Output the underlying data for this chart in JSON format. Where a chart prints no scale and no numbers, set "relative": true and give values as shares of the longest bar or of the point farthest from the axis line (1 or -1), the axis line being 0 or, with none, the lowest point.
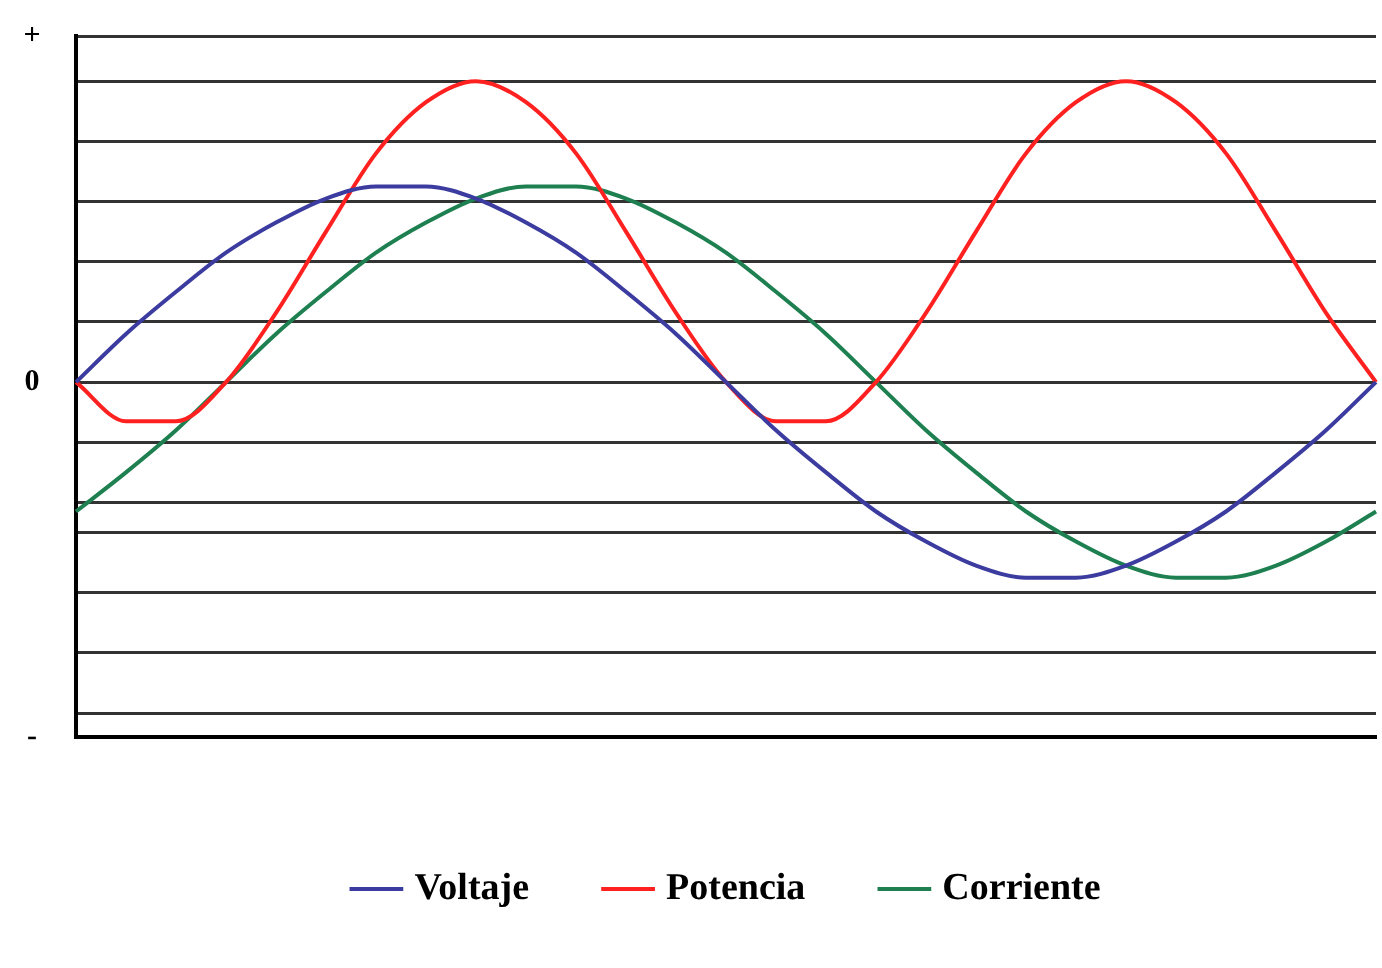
{
  "chart_data": {
    "type": "line",
    "relative": true,
    "grid": "y",
    "legend": "bottom",
    "marker": "none",
    "line_style": "solid",
    "categories": [
      null,
      null,
      null,
      null,
      null,
      null,
      null,
      null,
      null,
      null,
      null,
      null,
      null,
      null,
      null,
      null,
      null,
      null,
      null,
      null,
      null,
      null,
      null,
      null,
      null,
      null,
      null
    ],
    "series": [
      {
        "name": "Voltaje",
        "color": "#3c3ca0",
        "values": [
          0,
          0.16,
          0.3,
          0.43,
          0.53,
          0.61,
          0.65,
          0.65,
          0.61,
          0.53,
          0.43,
          0.3,
          0.16,
          0,
          -0.16,
          -0.3,
          -0.43,
          -0.53,
          -0.61,
          -0.65,
          -0.65,
          -0.61,
          -0.53,
          -0.43,
          -0.3,
          -0.16,
          0
        ]
      },
      {
        "name": "Potencia",
        "color": "#ff2020",
        "values": [
          0,
          -0.13,
          -0.13,
          0,
          0.23,
          0.5,
          0.76,
          0.93,
          1.0,
          0.93,
          0.76,
          0.5,
          0.23,
          0,
          -0.13,
          -0.13,
          0,
          0.23,
          0.5,
          0.76,
          0.93,
          1.0,
          0.93,
          0.76,
          0.5,
          0.23,
          0
        ]
      },
      {
        "name": "Corriente",
        "color": "#1e8050",
        "values": [
          -0.43,
          -0.3,
          -0.16,
          0,
          0.16,
          0.3,
          0.43,
          0.53,
          0.61,
          0.65,
          0.65,
          0.61,
          0.53,
          0.43,
          0.3,
          0.16,
          0,
          -0.16,
          -0.3,
          -0.43,
          -0.53,
          -0.61,
          -0.65,
          -0.65,
          -0.61,
          -0.53,
          -0.43
        ]
      }
    ],
    "annotations": [
      "+",
      "0",
      "-"
    ]
  }
}
